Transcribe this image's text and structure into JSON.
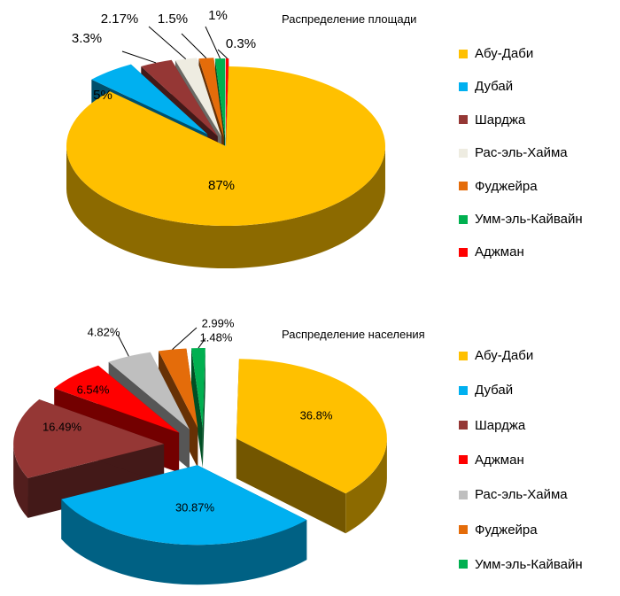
{
  "chart_data": [
    {
      "type": "pie",
      "title": "Распределение площади",
      "categories": [
        "Абу-Даби",
        "Дубай",
        "Шарджа",
        "Рас-эль-Хайма",
        "Фуджейра",
        "Умм-эль-Кайвайн",
        "Аджман"
      ],
      "values": [
        87,
        5,
        3.3,
        2.17,
        1.5,
        1,
        0.3
      ],
      "labels": [
        "87%",
        "5%",
        "3.3%",
        "2.17%",
        "1.5%",
        "1%",
        "0.3%"
      ],
      "colors": [
        "#FFC000",
        "#00B0F0",
        "#953735",
        "#EEECE1",
        "#E46C0A",
        "#00B050",
        "#FF0000"
      ],
      "legend_position": "right",
      "style": "3d-exploded"
    },
    {
      "type": "pie",
      "title": "Распределение населения",
      "categories": [
        "Абу-Даби",
        "Дубай",
        "Шарджа",
        "Аджман",
        "Рас-эль-Хайма",
        "Фуджейра",
        "Умм-эль-Кайвайн"
      ],
      "values": [
        36.8,
        30.87,
        16.49,
        6.54,
        4.82,
        2.99,
        1.48
      ],
      "labels": [
        "36.8%",
        "30.87%",
        "16.49%",
        "6.54%",
        "4.82%",
        "2.99%",
        "1.48%"
      ],
      "colors": [
        "#FFC000",
        "#00B0F0",
        "#953735",
        "#FF0000",
        "#BFBFBF",
        "#E46C0A",
        "#00B050"
      ],
      "legend_position": "right",
      "style": "3d-exploded"
    }
  ]
}
